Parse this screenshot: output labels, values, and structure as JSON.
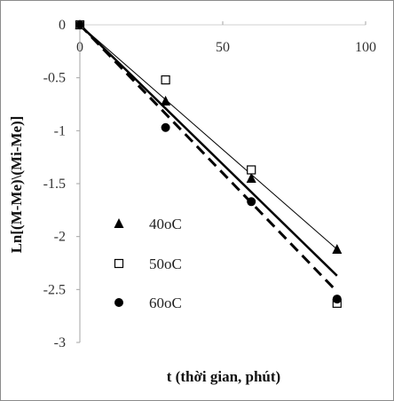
{
  "chart_data": {
    "type": "scatter",
    "title": "",
    "xlabel": "t (thời gian, phút)",
    "ylabel": "Ln[(M-Me)\\(Mi-Me)]",
    "xlim": [
      0,
      100
    ],
    "ylim": [
      -3,
      0
    ],
    "xticks": [
      {
        "value": 0,
        "label": "0"
      },
      {
        "value": 50,
        "label": "50"
      },
      {
        "value": 100,
        "label": "100"
      }
    ],
    "yticks": [
      {
        "value": 0,
        "label": "0"
      },
      {
        "value": -0.5,
        "label": "-0.5"
      },
      {
        "value": -1,
        "label": "-1"
      },
      {
        "value": -1.5,
        "label": "-1.5"
      },
      {
        "value": -2,
        "label": "-2"
      },
      {
        "value": -2.5,
        "label": "-2.5"
      },
      {
        "value": -3,
        "label": "-3"
      }
    ],
    "grid": "horizontal",
    "legend_position": "left",
    "series": [
      {
        "name": "40oC",
        "marker": "triangle",
        "x": [
          0,
          30,
          60,
          90
        ],
        "y": [
          0,
          -0.72,
          -1.45,
          -2.12
        ],
        "trendline": {
          "style": "thin",
          "x": [
            0,
            90
          ],
          "y": [
            0,
            -2.12
          ]
        }
      },
      {
        "name": "50oC",
        "marker": "square-open",
        "x": [
          0,
          30,
          60,
          90
        ],
        "y": [
          0,
          -0.52,
          -1.37,
          -2.63
        ],
        "trendline": {
          "style": "solid",
          "x": [
            0,
            90
          ],
          "y": [
            0,
            -2.37
          ]
        }
      },
      {
        "name": "60oC",
        "marker": "circle",
        "x": [
          0,
          30,
          60,
          90
        ],
        "y": [
          0,
          -0.97,
          -1.67,
          -2.59
        ],
        "trendline": {
          "style": "dashed",
          "x": [
            0,
            90
          ],
          "y": [
            0,
            -2.52
          ]
        }
      }
    ]
  }
}
